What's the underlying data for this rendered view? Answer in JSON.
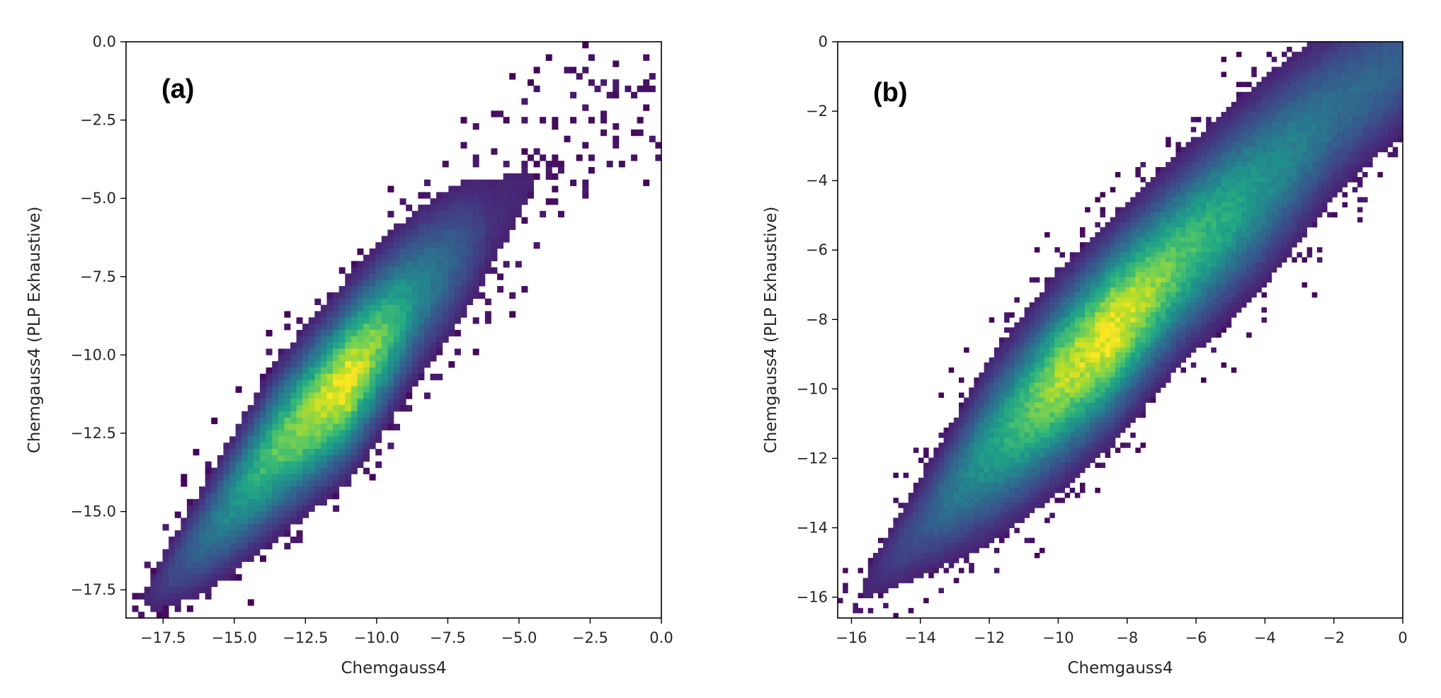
{
  "chart_data": [
    {
      "type": "heatmap",
      "panel_label": "(a)",
      "xlabel": "Chemgauss4",
      "ylabel": "Chemgauss4 (PLP Exhaustive)",
      "xlim": [
        -18.8,
        0.0
      ],
      "ylim": [
        -18.4,
        0.0
      ],
      "xticks": [
        "−17.5",
        "−15.0",
        "−12.5",
        "−10.0",
        "−7.5",
        "−5.0",
        "−2.5",
        "0.0"
      ],
      "xtick_values": [
        -17.5,
        -15.0,
        -12.5,
        -10.0,
        -7.5,
        -5.0,
        -2.5,
        0.0
      ],
      "yticks": [
        "0.0",
        "−2.5",
        "−5.0",
        "−7.5",
        "−10.0",
        "−12.5",
        "−15.0",
        "−17.5"
      ],
      "ytick_values": [
        0.0,
        -2.5,
        -5.0,
        -7.5,
        -10.0,
        -12.5,
        -15.0,
        -17.5
      ],
      "colormap": "viridis",
      "density_ridge": [
        {
          "x": -18.5,
          "y": -18.2,
          "spread": 0.5,
          "density": 0.02
        },
        {
          "x": -16.0,
          "y": -15.8,
          "spread": 1.0,
          "density": 0.3
        },
        {
          "x": -13.5,
          "y": -13.0,
          "spread": 1.3,
          "density": 0.7
        },
        {
          "x": -11.0,
          "y": -10.8,
          "spread": 1.4,
          "density": 1.0
        },
        {
          "x": -8.5,
          "y": -8.0,
          "spread": 1.4,
          "density": 0.4
        },
        {
          "x": -6.0,
          "y": -5.8,
          "spread": 1.3,
          "density": 0.1
        },
        {
          "x": -3.0,
          "y": -3.0,
          "spread": 1.0,
          "density": 0.02
        },
        {
          "x": -0.5,
          "y": -2.0,
          "spread": 0.8,
          "density": 0.01
        }
      ]
    },
    {
      "type": "heatmap",
      "panel_label": "(b)",
      "xlabel": "Chemgauss4",
      "ylabel": "Chemgauss4 (PLP Exhaustive)",
      "xlim": [
        -16.4,
        0.0
      ],
      "ylim": [
        -16.6,
        0.0
      ],
      "xticks": [
        "−16",
        "−14",
        "−12",
        "−10",
        "−8",
        "−6",
        "−4",
        "−2",
        "0"
      ],
      "xtick_values": [
        -16,
        -14,
        -12,
        -10,
        -8,
        -6,
        -4,
        -2,
        0
      ],
      "yticks": [
        "0",
        "−2",
        "−4",
        "−6",
        "−8",
        "−10",
        "−12",
        "−14",
        "−16"
      ],
      "ytick_values": [
        0,
        -2,
        -4,
        -6,
        -8,
        -10,
        -12,
        -14,
        -16
      ],
      "colormap": "viridis",
      "density_ridge": [
        {
          "x": -16.2,
          "y": -16.3,
          "spread": 0.4,
          "density": 0.02
        },
        {
          "x": -14.0,
          "y": -14.0,
          "spread": 0.9,
          "density": 0.2
        },
        {
          "x": -12.0,
          "y": -11.8,
          "spread": 1.3,
          "density": 0.5
        },
        {
          "x": -10.0,
          "y": -9.8,
          "spread": 1.4,
          "density": 0.85
        },
        {
          "x": -8.5,
          "y": -8.4,
          "spread": 1.4,
          "density": 1.0
        },
        {
          "x": -6.5,
          "y": -6.3,
          "spread": 1.4,
          "density": 0.7
        },
        {
          "x": -4.0,
          "y": -4.0,
          "spread": 1.5,
          "density": 0.45
        },
        {
          "x": -2.0,
          "y": -2.0,
          "spread": 1.4,
          "density": 0.3
        },
        {
          "x": 0.0,
          "y": -0.6,
          "spread": 1.2,
          "density": 0.25
        }
      ]
    }
  ]
}
